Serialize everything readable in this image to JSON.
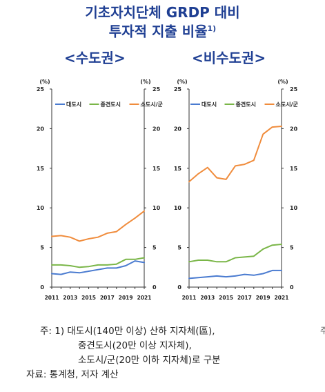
{
  "title_line1": "기초자치단체 GRDP 대비",
  "title_line2": "투자적 지출 비율",
  "title_sup": "1)",
  "notes": {
    "line1": "주: 1) 대도시(140만 이상) 산하 지자체(區),",
    "line2": "중견도시(20만 이상 지자체),",
    "line3": "소도시/군(20만 이하 지자체)로 구분",
    "source": "자료: 통계청, 저자 계산",
    "edge_mark": "주"
  },
  "chart_data": [
    {
      "type": "line",
      "title": "<수도권>",
      "unit_left": "(%)",
      "unit_right": "(%)",
      "x": [
        2011,
        2012,
        2013,
        2014,
        2015,
        2016,
        2017,
        2018,
        2019,
        2020,
        2021
      ],
      "x_tick_labels": [
        "2011",
        "2013",
        "2015",
        "2017",
        "2019",
        "2021"
      ],
      "y_ticks": [
        0,
        5,
        10,
        15,
        20,
        25
      ],
      "ylim": [
        0,
        25
      ],
      "grid": false,
      "legend_position": "top",
      "series": [
        {
          "name": "대도시",
          "color": "#4a7bd0",
          "values": [
            1.7,
            1.6,
            1.9,
            1.8,
            2.0,
            2.2,
            2.4,
            2.4,
            2.7,
            3.3,
            3.1
          ]
        },
        {
          "name": "중견도시",
          "color": "#7ab648",
          "values": [
            2.8,
            2.8,
            2.7,
            2.5,
            2.6,
            2.8,
            2.8,
            2.9,
            3.5,
            3.5,
            3.7
          ]
        },
        {
          "name": "소도시/군",
          "color": "#f08c3c",
          "values": [
            6.4,
            6.5,
            6.3,
            5.8,
            6.1,
            6.3,
            6.8,
            7.0,
            7.9,
            8.7,
            9.6
          ]
        }
      ]
    },
    {
      "type": "line",
      "title": "<비수도권>",
      "unit_left": "(%)",
      "unit_right": "(%)",
      "x": [
        2011,
        2012,
        2013,
        2014,
        2015,
        2016,
        2017,
        2018,
        2019,
        2020,
        2021
      ],
      "x_tick_labels": [
        "2011",
        "2013",
        "2015",
        "2017",
        "2019",
        "2021"
      ],
      "y_ticks": [
        0,
        5,
        10,
        15,
        20,
        25
      ],
      "ylim": [
        0,
        25
      ],
      "grid": false,
      "legend_position": "top",
      "series": [
        {
          "name": "대도시",
          "color": "#4a7bd0",
          "values": [
            1.1,
            1.2,
            1.3,
            1.4,
            1.3,
            1.4,
            1.6,
            1.5,
            1.7,
            2.1,
            2.1
          ]
        },
        {
          "name": "중견도시",
          "color": "#7ab648",
          "values": [
            3.2,
            3.4,
            3.4,
            3.2,
            3.2,
            3.7,
            3.8,
            3.9,
            4.8,
            5.3,
            5.4
          ]
        },
        {
          "name": "소도시/군",
          "color": "#f08c3c",
          "values": [
            13.3,
            14.3,
            15.1,
            13.8,
            13.6,
            15.3,
            15.5,
            16.0,
            19.3,
            20.2,
            20.3
          ]
        }
      ]
    }
  ]
}
